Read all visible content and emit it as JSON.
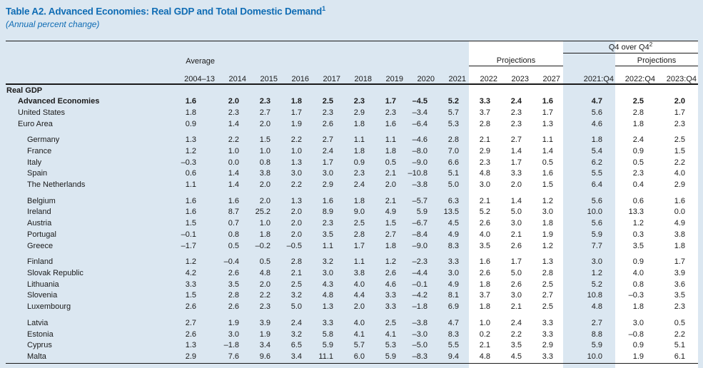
{
  "colors": {
    "page_bg": "#dbe7f1",
    "projection_band": "#ffffff",
    "title_blue": "#0f6cb4",
    "rule": "#1a1a1a",
    "text": "#1a1a1a"
  },
  "title": {
    "text": "Table A2. Advanced Economies: Real GDP and Total Domestic Demand",
    "footnote_ref": "1",
    "subtitle": "(Annual percent change)"
  },
  "header": {
    "average_label": "Average",
    "average_range": "2004–13",
    "years": [
      "2014",
      "2015",
      "2016",
      "2017",
      "2018",
      "2019",
      "2020",
      "2021"
    ],
    "projections_label": "Projections",
    "projection_years": [
      "2022",
      "2023",
      "2027"
    ],
    "q4_label": "Q4 over Q4",
    "q4_footnote_ref": "2",
    "q4_projections_label": "Projections",
    "q4_columns": [
      "2021:Q4",
      "2022:Q4",
      "2023:Q4"
    ]
  },
  "section": {
    "label": "Real GDP"
  },
  "rows": [
    {
      "name": "Advanced Economies",
      "indent": 1,
      "bold": true,
      "gap": false,
      "values": [
        "1.6",
        "2.0",
        "2.3",
        "1.8",
        "2.5",
        "2.3",
        "1.7",
        "–4.5",
        "5.2",
        "3.3",
        "2.4",
        "1.6",
        "4.7",
        "2.5",
        "2.0"
      ]
    },
    {
      "name": "United States",
      "indent": 1,
      "bold": false,
      "gap": false,
      "values": [
        "1.8",
        "2.3",
        "2.7",
        "1.7",
        "2.3",
        "2.9",
        "2.3",
        "–3.4",
        "5.7",
        "3.7",
        "2.3",
        "1.7",
        "5.6",
        "2.8",
        "1.7"
      ]
    },
    {
      "name": "Euro Area",
      "indent": 1,
      "bold": false,
      "gap": false,
      "values": [
        "0.9",
        "1.4",
        "2.0",
        "1.9",
        "2.6",
        "1.8",
        "1.6",
        "–6.4",
        "5.3",
        "2.8",
        "2.3",
        "1.3",
        "4.6",
        "1.8",
        "2.3"
      ]
    },
    {
      "name": "Germany",
      "indent": 2,
      "bold": false,
      "gap": true,
      "values": [
        "1.3",
        "2.2",
        "1.5",
        "2.2",
        "2.7",
        "1.1",
        "1.1",
        "–4.6",
        "2.8",
        "2.1",
        "2.7",
        "1.1",
        "1.8",
        "2.4",
        "2.5"
      ]
    },
    {
      "name": "France",
      "indent": 2,
      "bold": false,
      "gap": false,
      "values": [
        "1.2",
        "1.0",
        "1.0",
        "1.0",
        "2.4",
        "1.8",
        "1.8",
        "–8.0",
        "7.0",
        "2.9",
        "1.4",
        "1.4",
        "5.4",
        "0.9",
        "1.5"
      ]
    },
    {
      "name": "Italy",
      "indent": 2,
      "bold": false,
      "gap": false,
      "values": [
        "–0.3",
        "0.0",
        "0.8",
        "1.3",
        "1.7",
        "0.9",
        "0.5",
        "–9.0",
        "6.6",
        "2.3",
        "1.7",
        "0.5",
        "6.2",
        "0.5",
        "2.2"
      ]
    },
    {
      "name": "Spain",
      "indent": 2,
      "bold": false,
      "gap": false,
      "values": [
        "0.6",
        "1.4",
        "3.8",
        "3.0",
        "3.0",
        "2.3",
        "2.1",
        "–10.8",
        "5.1",
        "4.8",
        "3.3",
        "1.6",
        "5.5",
        "2.3",
        "4.0"
      ]
    },
    {
      "name": "The Netherlands",
      "indent": 2,
      "bold": false,
      "gap": false,
      "values": [
        "1.1",
        "1.4",
        "2.0",
        "2.2",
        "2.9",
        "2.4",
        "2.0",
        "–3.8",
        "5.0",
        "3.0",
        "2.0",
        "1.5",
        "6.4",
        "0.4",
        "2.9"
      ]
    },
    {
      "name": "Belgium",
      "indent": 2,
      "bold": false,
      "gap": true,
      "values": [
        "1.6",
        "1.6",
        "2.0",
        "1.3",
        "1.6",
        "1.8",
        "2.1",
        "–5.7",
        "6.3",
        "2.1",
        "1.4",
        "1.2",
        "5.6",
        "0.6",
        "1.6"
      ]
    },
    {
      "name": "Ireland",
      "indent": 2,
      "bold": false,
      "gap": false,
      "values": [
        "1.6",
        "8.7",
        "25.2",
        "2.0",
        "8.9",
        "9.0",
        "4.9",
        "5.9",
        "13.5",
        "5.2",
        "5.0",
        "3.0",
        "10.0",
        "13.3",
        "0.0"
      ]
    },
    {
      "name": "Austria",
      "indent": 2,
      "bold": false,
      "gap": false,
      "values": [
        "1.5",
        "0.7",
        "1.0",
        "2.0",
        "2.3",
        "2.5",
        "1.5",
        "–6.7",
        "4.5",
        "2.6",
        "3.0",
        "1.8",
        "5.6",
        "1.2",
        "4.9"
      ]
    },
    {
      "name": "Portugal",
      "indent": 2,
      "bold": false,
      "gap": false,
      "values": [
        "–0.1",
        "0.8",
        "1.8",
        "2.0",
        "3.5",
        "2.8",
        "2.7",
        "–8.4",
        "4.9",
        "4.0",
        "2.1",
        "1.9",
        "5.9",
        "0.3",
        "3.8"
      ]
    },
    {
      "name": "Greece",
      "indent": 2,
      "bold": false,
      "gap": false,
      "values": [
        "–1.7",
        "0.5",
        "–0.2",
        "–0.5",
        "1.1",
        "1.7",
        "1.8",
        "–9.0",
        "8.3",
        "3.5",
        "2.6",
        "1.2",
        "7.7",
        "3.5",
        "1.8"
      ]
    },
    {
      "name": "Finland",
      "indent": 2,
      "bold": false,
      "gap": true,
      "values": [
        "1.2",
        "–0.4",
        "0.5",
        "2.8",
        "3.2",
        "1.1",
        "1.2",
        "–2.3",
        "3.3",
        "1.6",
        "1.7",
        "1.3",
        "3.0",
        "0.9",
        "1.7"
      ]
    },
    {
      "name": "Slovak Republic",
      "indent": 2,
      "bold": false,
      "gap": false,
      "values": [
        "4.2",
        "2.6",
        "4.8",
        "2.1",
        "3.0",
        "3.8",
        "2.6",
        "–4.4",
        "3.0",
        "2.6",
        "5.0",
        "2.8",
        "1.2",
        "4.0",
        "3.9"
      ]
    },
    {
      "name": "Lithuania",
      "indent": 2,
      "bold": false,
      "gap": false,
      "values": [
        "3.3",
        "3.5",
        "2.0",
        "2.5",
        "4.3",
        "4.0",
        "4.6",
        "–0.1",
        "4.9",
        "1.8",
        "2.6",
        "2.5",
        "5.2",
        "0.8",
        "3.6"
      ]
    },
    {
      "name": "Slovenia",
      "indent": 2,
      "bold": false,
      "gap": false,
      "values": [
        "1.5",
        "2.8",
        "2.2",
        "3.2",
        "4.8",
        "4.4",
        "3.3",
        "–4.2",
        "8.1",
        "3.7",
        "3.0",
        "2.7",
        "10.8",
        "–0.3",
        "3.5"
      ]
    },
    {
      "name": "Luxembourg",
      "indent": 2,
      "bold": false,
      "gap": false,
      "values": [
        "2.6",
        "2.6",
        "2.3",
        "5.0",
        "1.3",
        "2.0",
        "3.3",
        "–1.8",
        "6.9",
        "1.8",
        "2.1",
        "2.5",
        "4.8",
        "1.8",
        "2.3"
      ]
    },
    {
      "name": "Latvia",
      "indent": 2,
      "bold": false,
      "gap": true,
      "values": [
        "2.7",
        "1.9",
        "3.9",
        "2.4",
        "3.3",
        "4.0",
        "2.5",
        "–3.8",
        "4.7",
        "1.0",
        "2.4",
        "3.3",
        "2.7",
        "3.0",
        "0.5"
      ]
    },
    {
      "name": "Estonia",
      "indent": 2,
      "bold": false,
      "gap": false,
      "values": [
        "2.6",
        "3.0",
        "1.9",
        "3.2",
        "5.8",
        "4.1",
        "4.1",
        "–3.0",
        "8.3",
        "0.2",
        "2.2",
        "3.3",
        "8.8",
        "–0.8",
        "2.2"
      ]
    },
    {
      "name": "Cyprus",
      "indent": 2,
      "bold": false,
      "gap": false,
      "values": [
        "1.3",
        "–1.8",
        "3.4",
        "6.5",
        "5.9",
        "5.7",
        "5.3",
        "–5.0",
        "5.5",
        "2.1",
        "3.5",
        "2.9",
        "5.9",
        "0.9",
        "5.1"
      ]
    },
    {
      "name": "Malta",
      "indent": 2,
      "bold": false,
      "gap": false,
      "values": [
        "2.9",
        "7.6",
        "9.6",
        "3.4",
        "11.1",
        "6.0",
        "5.9",
        "–8.3",
        "9.4",
        "4.8",
        "4.5",
        "3.3",
        "10.0",
        "1.9",
        "6.1"
      ]
    }
  ]
}
